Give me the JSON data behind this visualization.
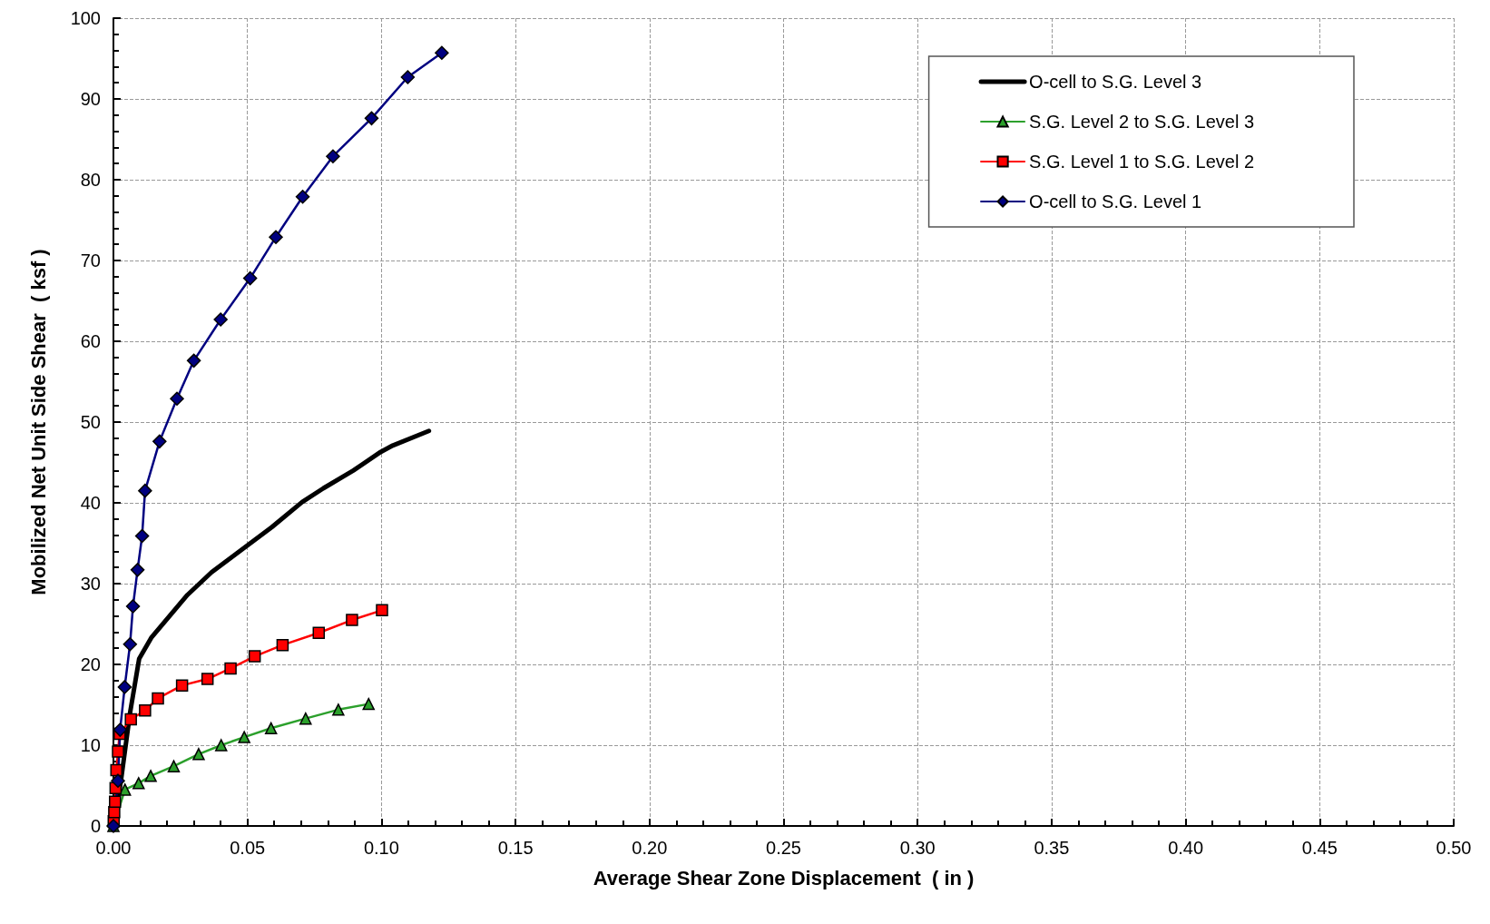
{
  "chart_data": {
    "type": "line",
    "xlabel": "Average Shear Zone Displacement  ( in )",
    "ylabel": "Mobilized Net Unit Side Shear  ( ksf )",
    "xlim": [
      0,
      0.5
    ],
    "ylim": [
      0,
      100
    ],
    "xticks": [
      {
        "value": 0,
        "label": "0.00"
      },
      0.05,
      {
        "value": 0.1,
        "label": "0.10"
      },
      0.15,
      {
        "value": 0.2,
        "label": "0.20"
      },
      0.25,
      {
        "value": 0.3,
        "label": "0.30"
      },
      0.35,
      {
        "value": 0.4,
        "label": "0.40"
      },
      0.45,
      {
        "value": 0.5,
        "label": "0.50"
      }
    ],
    "yticks": [
      0,
      10,
      20,
      30,
      40,
      50,
      60,
      70,
      80,
      90,
      100
    ],
    "grid": true,
    "legend": "top right",
    "series": [
      {
        "name": "O-cell to S.G. Level 3",
        "color": "#000000",
        "marker": "none",
        "x": [
          0,
          0.0028,
          0.0062,
          0.0096,
          0.0141,
          0.0276,
          0.0366,
          0.0479,
          0.0591,
          0.0704,
          0.0783,
          0.0895,
          0.0997,
          0.1042,
          0.1177
        ],
        "values": [
          0,
          5.6,
          14.0,
          20.7,
          23.3,
          28.6,
          31.4,
          34.2,
          37.0,
          40.1,
          41.8,
          44.0,
          46.3,
          47.1,
          48.9
        ]
      },
      {
        "name": "S.G. Level 2 to S.G. Level 3",
        "color": "#2ca02c",
        "marker": "triangle",
        "x": [
          0,
          0.0043,
          0.0094,
          0.0139,
          0.0225,
          0.0318,
          0.0402,
          0.0488,
          0.0588,
          0.0717,
          0.0839,
          0.0952
        ],
        "values": [
          0,
          4.5,
          5.3,
          6.2,
          7.4,
          8.9,
          10.0,
          11.0,
          12.1,
          13.3,
          14.4,
          15.1
        ]
      },
      {
        "name": "S.G. Level 1 to S.G. Level 2",
        "color": "#ff0000",
        "marker": "square",
        "x": [
          0.0001,
          0.0003,
          0.0006,
          0.0008,
          0.0011,
          0.0017,
          0.0023,
          0.0065,
          0.0118,
          0.0166,
          0.0256,
          0.0351,
          0.0437,
          0.0527,
          0.0631,
          0.0766,
          0.089,
          0.1002
        ],
        "values": [
          0.6,
          1.7,
          3.0,
          4.7,
          6.9,
          9.2,
          11.4,
          13.2,
          14.3,
          15.8,
          17.4,
          18.2,
          19.5,
          21.0,
          22.4,
          23.9,
          25.5,
          26.7
        ]
      },
      {
        "name": "O-cell to S.G. Level 1",
        "color": "#000080",
        "marker": "diamond",
        "x": [
          0,
          0.0017,
          0.0025,
          0.0042,
          0.0062,
          0.0073,
          0.009,
          0.0107,
          0.0118,
          0.0172,
          0.0237,
          0.03,
          0.04,
          0.051,
          0.0606,
          0.0706,
          0.0819,
          0.0963,
          0.1098,
          0.1225
        ],
        "values": [
          0,
          5.6,
          11.9,
          17.2,
          22.5,
          27.2,
          31.7,
          35.9,
          41.5,
          47.6,
          52.9,
          57.6,
          62.7,
          67.8,
          72.9,
          77.9,
          82.9,
          87.6,
          92.7,
          95.7
        ]
      }
    ]
  }
}
